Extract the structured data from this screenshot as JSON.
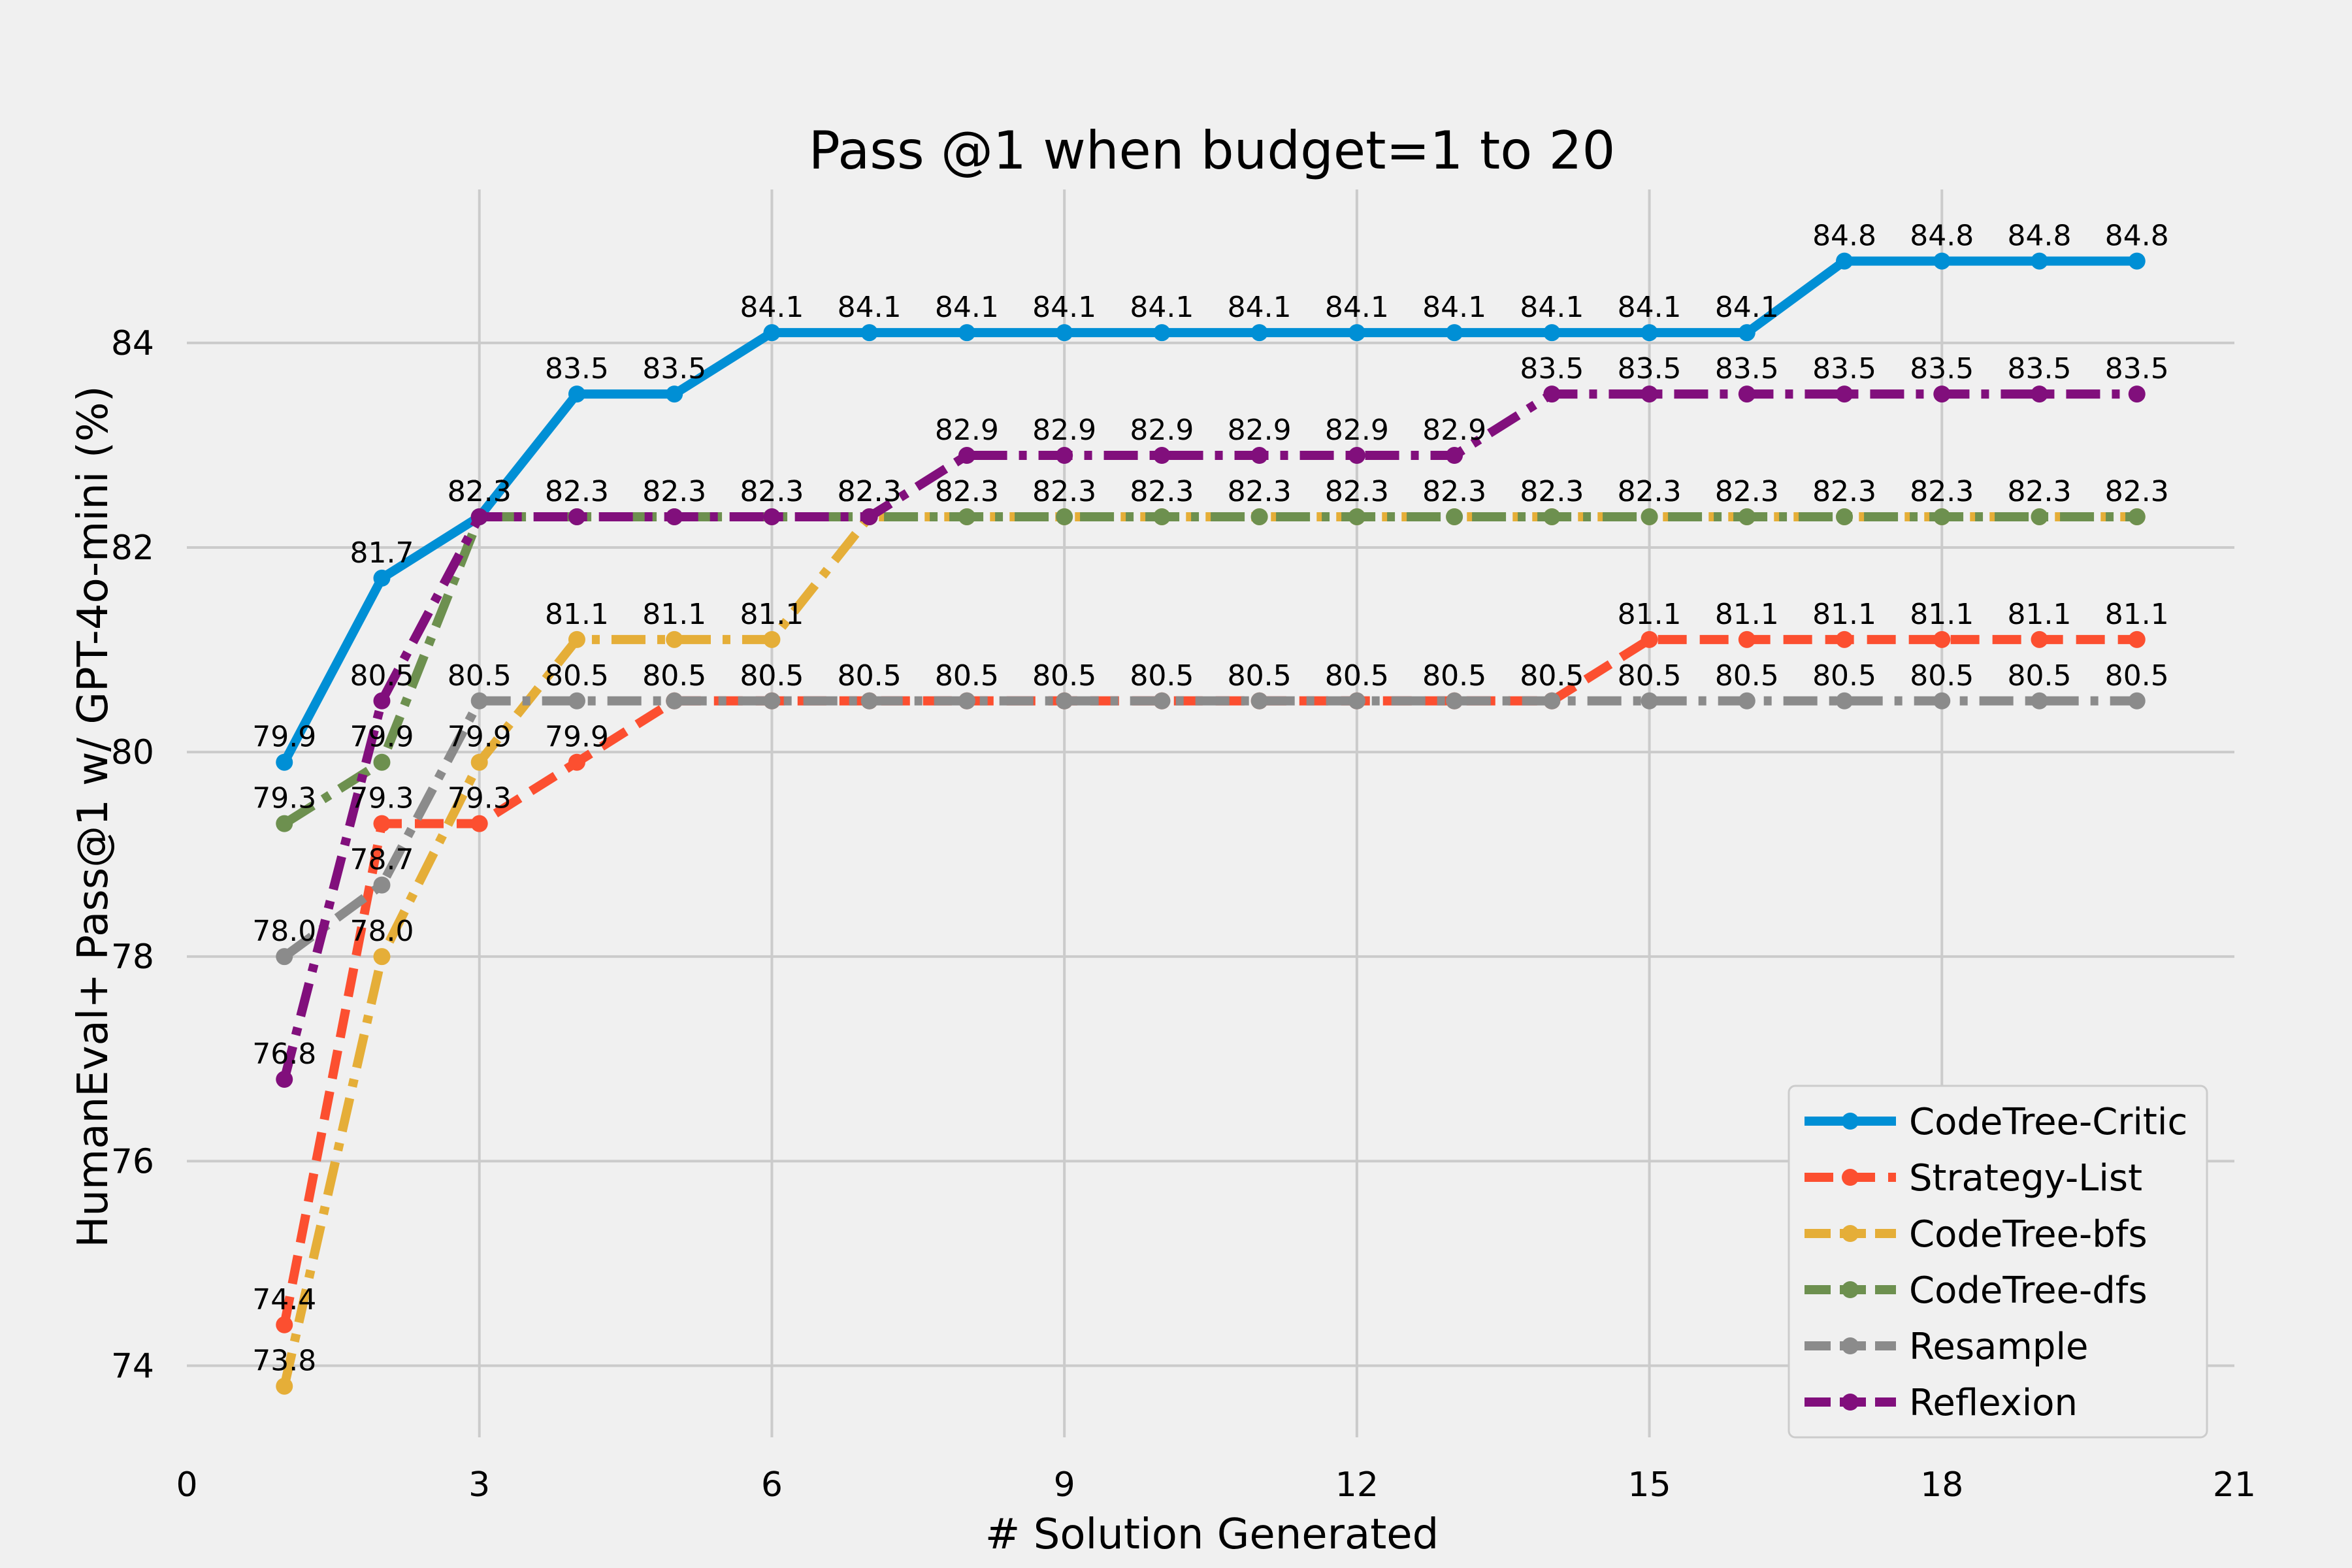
{
  "chart_data": {
    "type": "line",
    "title": "Pass @1 when budget=1 to 20",
    "xlabel": "# Solution Generated",
    "ylabel": "HumanEval+ Pass@1 w/ GPT-4o-mini (%)",
    "xlim": [
      0,
      21
    ],
    "ylim": [
      73.3,
      85.5
    ],
    "xticks": [
      0,
      3,
      6,
      9,
      12,
      15,
      18,
      21
    ],
    "yticks": [
      74,
      76,
      78,
      80,
      82,
      84
    ],
    "grid": true,
    "legend_position": "lower-right",
    "x": [
      1,
      2,
      3,
      4,
      5,
      6,
      7,
      8,
      9,
      10,
      11,
      12,
      13,
      14,
      15,
      16,
      17,
      18,
      19,
      20
    ],
    "series": [
      {
        "name": "CodeTree-Critic",
        "color": "#008fd5",
        "dash": "solid",
        "values": [
          79.9,
          81.7,
          82.3,
          83.5,
          83.5,
          84.1,
          84.1,
          84.1,
          84.1,
          84.1,
          84.1,
          84.1,
          84.1,
          84.1,
          84.1,
          84.1,
          84.8,
          84.8,
          84.8,
          84.8
        ],
        "labels": [
          "79.9",
          "81.7",
          "82.3",
          "83.5",
          "83.5",
          "84.1",
          "84.1",
          "84.1",
          "84.1",
          "84.1",
          "84.1",
          "84.1",
          "84.1",
          "84.1",
          "84.1",
          "84.1",
          "84.8",
          "84.8",
          "84.8",
          "84.8"
        ]
      },
      {
        "name": "Strategy-List",
        "color": "#fc4f30",
        "dash": "dashed",
        "values": [
          74.4,
          79.3,
          79.3,
          79.9,
          80.5,
          80.5,
          80.5,
          80.5,
          80.5,
          80.5,
          80.5,
          80.5,
          80.5,
          80.5,
          81.1,
          81.1,
          81.1,
          81.1,
          81.1,
          81.1
        ],
        "labels": [
          "74.4",
          "79.3",
          "79.3",
          "79.9",
          "80.5",
          "80.5",
          "80.5",
          "80.5",
          "80.5",
          "80.5",
          "80.5",
          "80.5",
          "80.5",
          "80.5",
          "81.1",
          "81.1",
          "81.1",
          "81.1",
          "81.1",
          "81.1"
        ]
      },
      {
        "name": "CodeTree-bfs",
        "color": "#e5ae38",
        "dash": "dashdot",
        "values": [
          73.8,
          78.0,
          79.9,
          81.1,
          81.1,
          81.1,
          82.3,
          82.3,
          82.3,
          82.3,
          82.3,
          82.3,
          82.3,
          82.3,
          82.3,
          82.3,
          82.3,
          82.3,
          82.3,
          82.3
        ],
        "labels": [
          "73.8",
          "78.0",
          "79.9",
          "81.1",
          "81.1",
          "81.1",
          "82.3",
          "82.3",
          "82.3",
          "82.3",
          "82.3",
          "82.3",
          "82.3",
          "82.3",
          "82.3",
          "82.3",
          "82.3",
          "82.3",
          "82.3",
          "82.3"
        ]
      },
      {
        "name": "CodeTree-dfs",
        "color": "#6d904f",
        "dash": "dashdot",
        "values": [
          79.3,
          79.9,
          82.3,
          82.3,
          82.3,
          82.3,
          82.3,
          82.3,
          82.3,
          82.3,
          82.3,
          82.3,
          82.3,
          82.3,
          82.3,
          82.3,
          82.3,
          82.3,
          82.3,
          82.3
        ],
        "labels": [
          "79.3",
          "79.9",
          "82.3",
          "82.3",
          "82.3",
          "82.3",
          "82.3",
          "82.3",
          "82.3",
          "82.3",
          "82.3",
          "82.3",
          "82.3",
          "82.3",
          "82.3",
          "82.3",
          "82.3",
          "82.3",
          "82.3",
          "82.3"
        ]
      },
      {
        "name": "Resample",
        "color": "#8b8b8b",
        "dash": "dashdot",
        "values": [
          78.0,
          78.7,
          80.5,
          80.5,
          80.5,
          80.5,
          80.5,
          80.5,
          80.5,
          80.5,
          80.5,
          80.5,
          80.5,
          80.5,
          80.5,
          80.5,
          80.5,
          80.5,
          80.5,
          80.5
        ],
        "labels": [
          "78.0",
          "78.7",
          "80.5",
          "80.5",
          "80.5",
          "80.5",
          "80.5",
          "80.5",
          "80.5",
          "80.5",
          "80.5",
          "80.5",
          "80.5",
          "80.5",
          "80.5",
          "80.5",
          "80.5",
          "80.5",
          "80.5",
          "80.5"
        ]
      },
      {
        "name": "Reflexion",
        "color": "#810f7c",
        "dash": "dashdot",
        "values": [
          76.8,
          80.5,
          82.3,
          82.3,
          82.3,
          82.3,
          82.3,
          82.9,
          82.9,
          82.9,
          82.9,
          82.9,
          82.9,
          83.5,
          83.5,
          83.5,
          83.5,
          83.5,
          83.5,
          83.5
        ],
        "labels": [
          "76.8",
          "80.5",
          "82.3",
          "82.3",
          "82.3",
          "82.3",
          "82.3",
          "82.9",
          "82.9",
          "82.9",
          "82.9",
          "82.9",
          "82.9",
          "83.5",
          "83.5",
          "83.5",
          "83.5",
          "83.5",
          "83.5",
          "83.5"
        ]
      }
    ],
    "label_draw_order": [
      "Resample",
      "CodeTree-bfs",
      "Strategy-List",
      "Reflexion",
      "CodeTree-dfs",
      "CodeTree-Critic"
    ]
  }
}
